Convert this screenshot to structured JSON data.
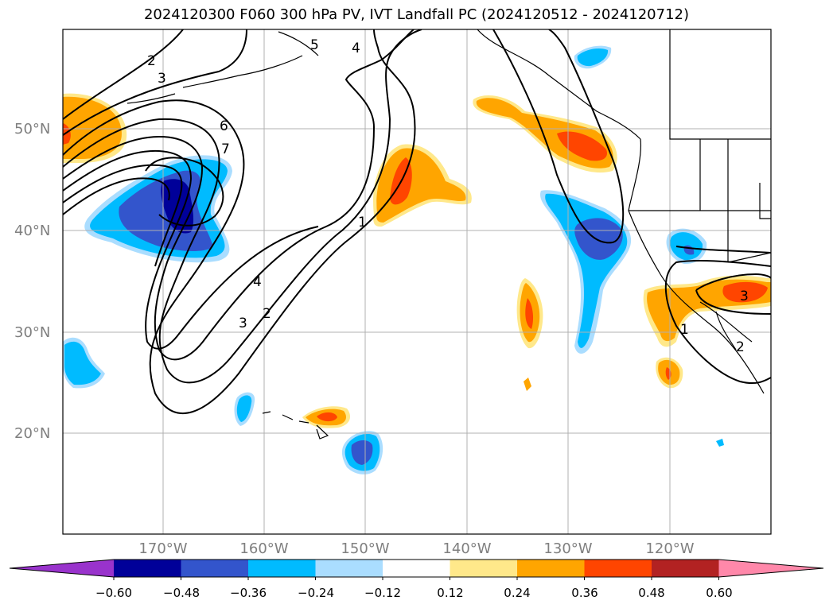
{
  "title": "2024120300 F060 300 hPa PV, IVT Landfall PC (2024120512 - 2024120712)",
  "latitude_labels": [
    "50°N",
    "40°N",
    "30°N",
    "20°N"
  ],
  "longitude_labels": [
    "170°W",
    "160°W",
    "150°W",
    "140°W",
    "130°W",
    "120°W"
  ],
  "colorbar": {
    "ticks": [
      "−0.60",
      "−0.48",
      "−0.36",
      "−0.24",
      "−0.12",
      "0.12",
      "0.24",
      "0.36",
      "0.48",
      "0.60"
    ],
    "colors": [
      "#9933cc",
      "#000099",
      "#3355cc",
      "#00bbff",
      "#aaddff",
      "#ffffff",
      "#ffe88a",
      "#ffa500",
      "#ff4500",
      "#b22222",
      "#ff88aa"
    ]
  },
  "contour_labels": [
    "2",
    "3",
    "6",
    "7",
    "5",
    "4",
    "1",
    "4",
    "3",
    "2",
    "1",
    "3",
    "2"
  ],
  "colors": {
    "axis_text": "#7f7f7f",
    "grid": "#b0b0b0",
    "contour": "#000000"
  }
}
